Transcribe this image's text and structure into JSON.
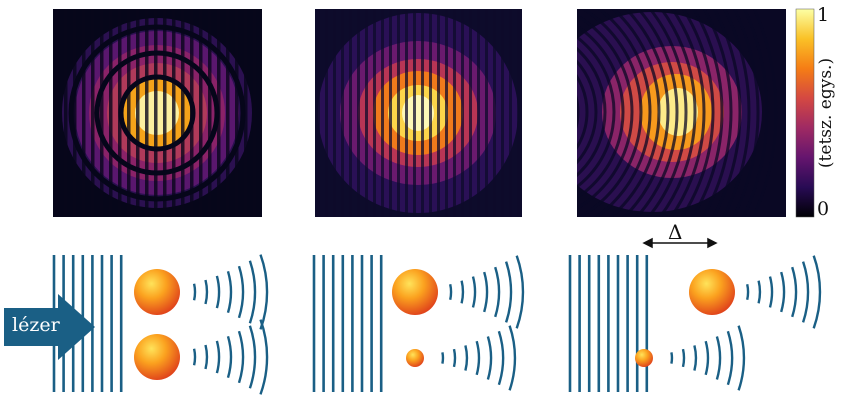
{
  "colorbar": {
    "max_label": "1",
    "min_label": "0",
    "unit_label": "(tetsz. egys.)",
    "colors": [
      "#000004",
      "#280b54",
      "#65156e",
      "#9f2a63",
      "#d44842",
      "#f57d15",
      "#fac127",
      "#fcffa4"
    ]
  },
  "panels": [
    {
      "id": "equal-spheres",
      "description_icon": "two-equal-spheres"
    },
    {
      "id": "unequal-spheres",
      "description_icon": "large-and-small-sphere"
    },
    {
      "id": "offset-spheres",
      "description_icon": "offset-large-and-small-sphere"
    }
  ],
  "separation": {
    "label": "Δ"
  },
  "laser": {
    "label": "lézer",
    "color": "#1a5f85"
  },
  "wavefront_color": "#1a5f85"
}
